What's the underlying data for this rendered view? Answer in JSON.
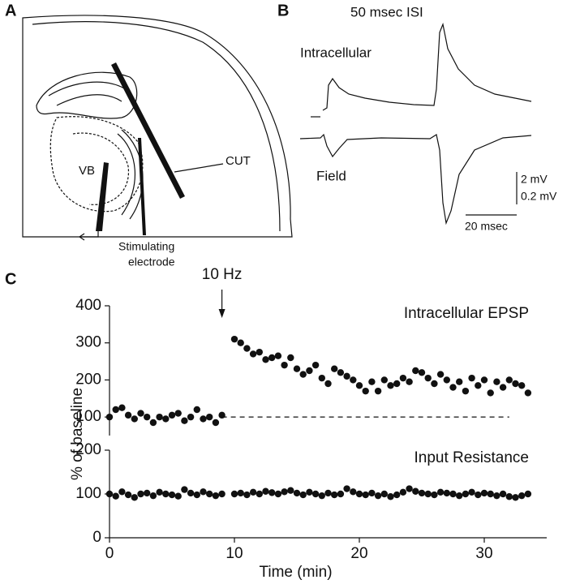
{
  "panel_a": {
    "letter": "A",
    "vb": "VB",
    "cut": "CUT",
    "electrode": [
      "Stimulating",
      "electrode"
    ]
  },
  "panel_b": {
    "letter": "B",
    "title": "50 msec ISI",
    "trace_labels": [
      "Intracellular",
      "Field"
    ],
    "scale_labels": [
      "2 mV",
      "0.2 mV",
      "20 msec"
    ]
  },
  "panel_c": {
    "letter": "C"
  },
  "chart_data": [
    {
      "type": "scatter",
      "ylabel": "% of baseline",
      "annotation": "10 Hz",
      "annotation_x": 9,
      "reference_line": {
        "y": 100,
        "x": [
          9,
          32
        ]
      },
      "xlim": [
        0,
        35
      ],
      "ylim": [
        50,
        400
      ],
      "yticks": [
        100,
        200,
        300,
        400
      ],
      "x": [
        0,
        0.5,
        1,
        1.5,
        2,
        2.5,
        3,
        3.5,
        4,
        4.5,
        5,
        5.5,
        6,
        6.5,
        7,
        7.5,
        8,
        8.5,
        9,
        10,
        10.5,
        11,
        11.5,
        12,
        12.5,
        13,
        13.5,
        14,
        14.5,
        15,
        15.5,
        16,
        16.5,
        17,
        17.5,
        18,
        18.5,
        19,
        19.5,
        20,
        20.5,
        21,
        21.5,
        22,
        22.5,
        23,
        23.5,
        24,
        24.5,
        25,
        25.5,
        26,
        26.5,
        27,
        27.5,
        28,
        28.5,
        29,
        29.5,
        30,
        30.5,
        31,
        31.5,
        32,
        32.5,
        33,
        33.5
      ],
      "series": [
        {
          "name": "Intracellular EPSP",
          "color": "#111111",
          "values": [
            100,
            120,
            125,
            105,
            95,
            110,
            100,
            85,
            100,
            95,
            105,
            110,
            90,
            100,
            120,
            95,
            100,
            85,
            105,
            310,
            300,
            285,
            270,
            275,
            255,
            260,
            265,
            240,
            260,
            230,
            215,
            225,
            240,
            205,
            190,
            230,
            220,
            210,
            200,
            185,
            170,
            195,
            170,
            200,
            185,
            190,
            205,
            195,
            225,
            220,
            205,
            190,
            215,
            200,
            180,
            195,
            170,
            205,
            185,
            200,
            165,
            195,
            180,
            200,
            190,
            185,
            165
          ]
        }
      ]
    },
    {
      "type": "scatter",
      "xlabel": "Time (min)",
      "xlim": [
        0,
        35
      ],
      "xticks": [
        0,
        10,
        20,
        30
      ],
      "ylim": [
        0,
        200
      ],
      "yticks": [
        0,
        100,
        200
      ],
      "x": [
        0,
        0.5,
        1,
        1.5,
        2,
        2.5,
        3,
        3.5,
        4,
        4.5,
        5,
        5.5,
        6,
        6.5,
        7,
        7.5,
        8,
        8.5,
        9,
        10,
        10.5,
        11,
        11.5,
        12,
        12.5,
        13,
        13.5,
        14,
        14.5,
        15,
        15.5,
        16,
        16.5,
        17,
        17.5,
        18,
        18.5,
        19,
        19.5,
        20,
        20.5,
        21,
        21.5,
        22,
        22.5,
        23,
        23.5,
        24,
        24.5,
        25,
        25.5,
        26,
        26.5,
        27,
        27.5,
        28,
        28.5,
        29,
        29.5,
        30,
        30.5,
        31,
        31.5,
        32,
        32.5,
        33,
        33.5
      ],
      "series": [
        {
          "name": "Input Resistance",
          "color": "#111111",
          "values": [
            100,
            95,
            105,
            98,
            92,
            100,
            102,
            96,
            104,
            100,
            98,
            95,
            110,
            102,
            98,
            105,
            100,
            96,
            100,
            100,
            102,
            98,
            104,
            100,
            106,
            103,
            100,
            105,
            108,
            102,
            98,
            104,
            100,
            96,
            102,
            98,
            100,
            112,
            105,
            100,
            98,
            102,
            96,
            100,
            94,
            98,
            104,
            112,
            106,
            102,
            100,
            98,
            104,
            102,
            100,
            96,
            100,
            104,
            98,
            102,
            100,
            96,
            100,
            94,
            92,
            96,
            100
          ]
        }
      ]
    }
  ]
}
